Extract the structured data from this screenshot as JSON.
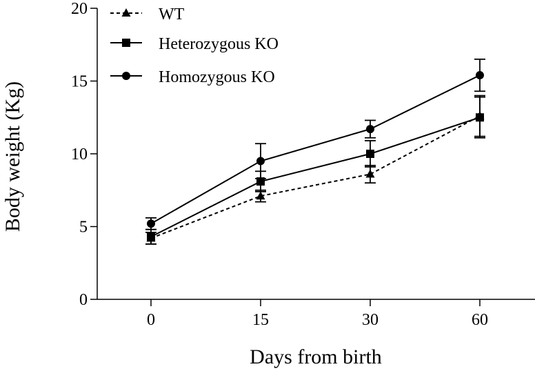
{
  "chart_data": {
    "type": "line",
    "title": "",
    "xlabel": "Days from birth",
    "ylabel": "Body weight (Kg)",
    "categories": [
      "0",
      "15",
      "30",
      "60"
    ],
    "ylim": [
      0,
      20
    ],
    "yticks": [
      0,
      5,
      10,
      15,
      20
    ],
    "grid": false,
    "legend_position": "top-left",
    "series": [
      {
        "name": "WT",
        "marker": "triangle",
        "line_style": "dashed",
        "values": [
          4.2,
          7.1,
          8.6,
          12.6
        ],
        "errors": [
          0.4,
          0.4,
          0.6,
          1.4
        ]
      },
      {
        "name": "Heterozygous KO",
        "marker": "square",
        "line_style": "solid",
        "values": [
          4.3,
          8.1,
          10.0,
          12.5
        ],
        "errors": [
          0.5,
          0.7,
          0.9,
          1.4
        ]
      },
      {
        "name": "Homozygous KO",
        "marker": "circle",
        "line_style": "solid",
        "values": [
          5.2,
          9.5,
          11.7,
          15.4
        ],
        "errors": [
          0.4,
          1.2,
          0.6,
          1.1
        ]
      }
    ]
  }
}
